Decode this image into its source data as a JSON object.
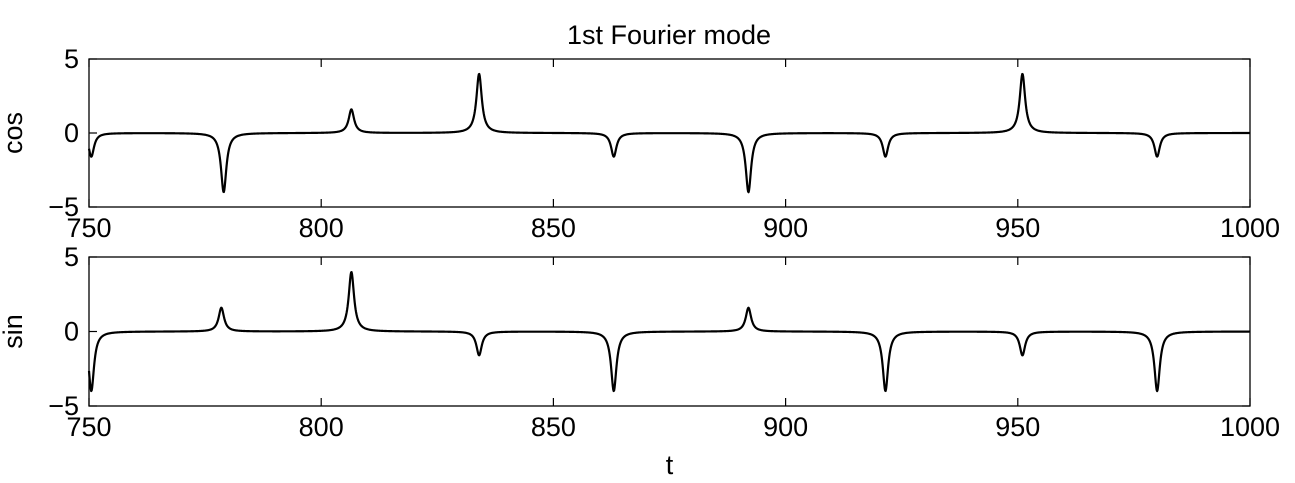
{
  "title": "1st Fourier mode",
  "chart_data": [
    {
      "type": "line",
      "ylabel": "cos",
      "xlabel": "",
      "xlim": [
        750,
        1000
      ],
      "ylim": [
        -5,
        5
      ],
      "xticks": [
        750,
        800,
        850,
        900,
        950,
        1000
      ],
      "yticks": [
        -5,
        0,
        5
      ],
      "grid": false,
      "line_color": "#000000",
      "spikes": [
        {
          "t": 750.5,
          "amp": -1.6
        },
        {
          "t": 779.0,
          "amp": -4.0
        },
        {
          "t": 806.5,
          "amp": 1.6
        },
        {
          "t": 834.0,
          "amp": 4.0
        },
        {
          "t": 863.0,
          "amp": -1.6
        },
        {
          "t": 892.0,
          "amp": -4.0
        },
        {
          "t": 921.5,
          "amp": -1.6
        },
        {
          "t": 951.0,
          "amp": 4.0
        },
        {
          "t": 980.0,
          "amp": -1.6
        }
      ]
    },
    {
      "type": "line",
      "ylabel": "sin",
      "xlabel": "t",
      "xlim": [
        750,
        1000
      ],
      "ylim": [
        -5,
        5
      ],
      "xticks": [
        750,
        800,
        850,
        900,
        950,
        1000
      ],
      "yticks": [
        -5,
        0,
        5
      ],
      "grid": false,
      "line_color": "#000000",
      "spikes": [
        {
          "t": 750.5,
          "amp": -4.0
        },
        {
          "t": 778.5,
          "amp": 1.6
        },
        {
          "t": 806.5,
          "amp": 4.0
        },
        {
          "t": 834.0,
          "amp": -1.6
        },
        {
          "t": 863.0,
          "amp": -4.0
        },
        {
          "t": 892.0,
          "amp": 1.6
        },
        {
          "t": 921.5,
          "amp": -4.0
        },
        {
          "t": 951.0,
          "amp": -1.6
        },
        {
          "t": 980.0,
          "amp": -4.0
        }
      ]
    }
  ]
}
